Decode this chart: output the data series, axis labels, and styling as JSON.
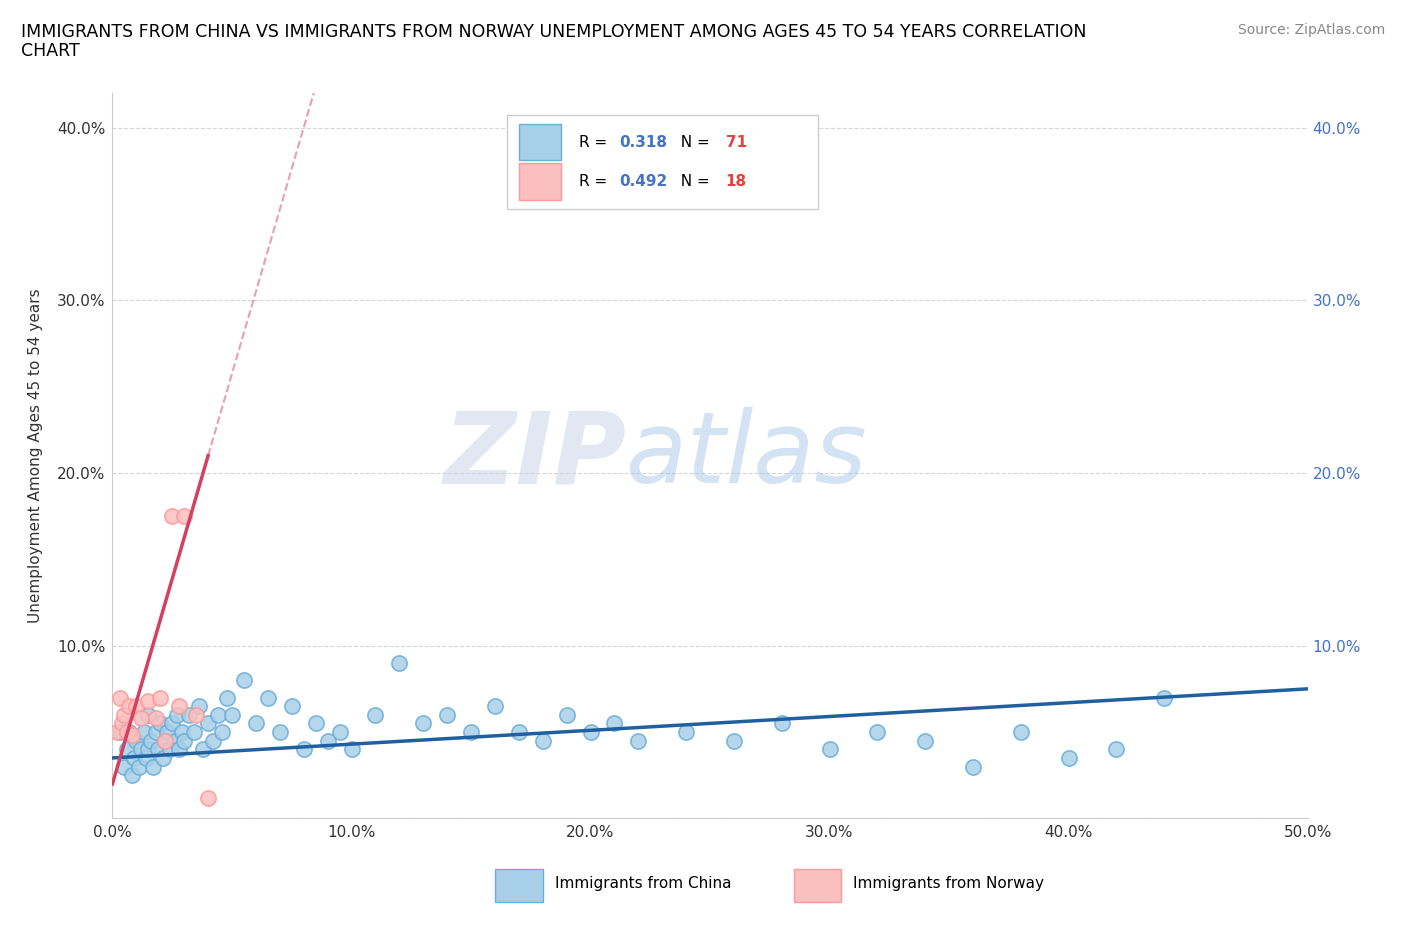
{
  "title_line1": "IMMIGRANTS FROM CHINA VS IMMIGRANTS FROM NORWAY UNEMPLOYMENT AMONG AGES 45 TO 54 YEARS CORRELATION",
  "title_line2": "CHART",
  "source": "Source: ZipAtlas.com",
  "ylabel": "Unemployment Among Ages 45 to 54 years",
  "xlim": [
    0.0,
    0.5
  ],
  "ylim": [
    0.0,
    0.42
  ],
  "x_ticks": [
    0.0,
    0.1,
    0.2,
    0.3,
    0.4,
    0.5
  ],
  "x_tick_labels": [
    "0.0%",
    "10.0%",
    "20.0%",
    "30.0%",
    "40.0%",
    "50.0%"
  ],
  "y_ticks": [
    0.0,
    0.1,
    0.2,
    0.3,
    0.4
  ],
  "y_tick_labels": [
    "",
    "10.0%",
    "20.0%",
    "30.0%",
    "40.0%"
  ],
  "china_color": "#a8cfe8",
  "china_edge_color": "#6baed6",
  "norway_color": "#fcbfbf",
  "norway_edge_color": "#fb9a99",
  "china_R": 0.318,
  "china_N": 71,
  "norway_R": 0.492,
  "norway_N": 18,
  "china_line_color": "#2060a0",
  "norway_line_color": "#d44060",
  "watermark_zip": "ZIP",
  "watermark_atlas": "atlas",
  "legend_R_color": "#4472c4",
  "legend_N_color": "#e84040",
  "china_x": [
    0.003,
    0.005,
    0.006,
    0.007,
    0.008,
    0.009,
    0.01,
    0.011,
    0.012,
    0.013,
    0.014,
    0.015,
    0.015,
    0.016,
    0.017,
    0.018,
    0.019,
    0.02,
    0.021,
    0.022,
    0.023,
    0.024,
    0.025,
    0.026,
    0.027,
    0.028,
    0.029,
    0.03,
    0.032,
    0.034,
    0.036,
    0.038,
    0.04,
    0.042,
    0.044,
    0.046,
    0.048,
    0.05,
    0.055,
    0.06,
    0.065,
    0.07,
    0.075,
    0.08,
    0.085,
    0.09,
    0.095,
    0.1,
    0.11,
    0.12,
    0.13,
    0.14,
    0.15,
    0.16,
    0.17,
    0.18,
    0.19,
    0.2,
    0.21,
    0.22,
    0.24,
    0.26,
    0.28,
    0.3,
    0.32,
    0.34,
    0.36,
    0.38,
    0.4,
    0.42,
    0.44
  ],
  "china_y": [
    0.05,
    0.03,
    0.04,
    0.05,
    0.025,
    0.035,
    0.045,
    0.03,
    0.04,
    0.05,
    0.035,
    0.04,
    0.06,
    0.045,
    0.03,
    0.05,
    0.04,
    0.055,
    0.035,
    0.045,
    0.05,
    0.04,
    0.055,
    0.045,
    0.06,
    0.04,
    0.05,
    0.045,
    0.06,
    0.05,
    0.065,
    0.04,
    0.055,
    0.045,
    0.06,
    0.05,
    0.07,
    0.06,
    0.08,
    0.055,
    0.07,
    0.05,
    0.065,
    0.04,
    0.055,
    0.045,
    0.05,
    0.04,
    0.06,
    0.09,
    0.055,
    0.06,
    0.05,
    0.065,
    0.05,
    0.045,
    0.06,
    0.05,
    0.055,
    0.045,
    0.05,
    0.045,
    0.055,
    0.04,
    0.05,
    0.045,
    0.03,
    0.05,
    0.035,
    0.04,
    0.07
  ],
  "norway_x": [
    0.002,
    0.003,
    0.004,
    0.005,
    0.006,
    0.007,
    0.008,
    0.01,
    0.012,
    0.015,
    0.018,
    0.02,
    0.022,
    0.025,
    0.028,
    0.03,
    0.035,
    0.04
  ],
  "norway_y": [
    0.05,
    0.07,
    0.055,
    0.06,
    0.05,
    0.065,
    0.048,
    0.065,
    0.058,
    0.068,
    0.058,
    0.07,
    0.045,
    0.175,
    0.065,
    0.175,
    0.06,
    0.012
  ]
}
